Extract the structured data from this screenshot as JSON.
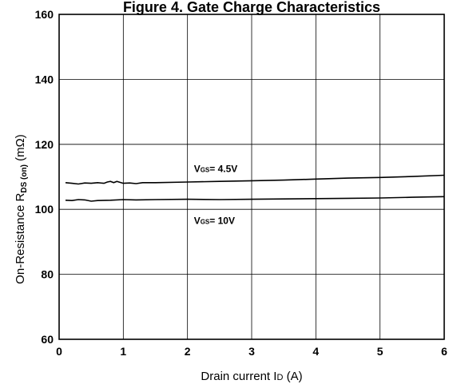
{
  "chart_data": {
    "type": "line",
    "title": "Figure 4. Gate Charge Characteristics",
    "xlabel_main": "Drain current I",
    "xlabel_sub": "D",
    "xlabel_unit": " (A)",
    "ylabel_main": "On-Resistance  R",
    "ylabel_sub": "DS (on)",
    "ylabel_unit": " (mΩ)",
    "xlim": [
      0,
      6
    ],
    "ylim": [
      60,
      160
    ],
    "xticks": [
      0,
      1,
      2,
      3,
      4,
      5,
      6
    ],
    "yticks": [
      60,
      80,
      100,
      120,
      140,
      160
    ],
    "grid": true,
    "series": [
      {
        "label_prefix": "V",
        "label_sub": "GS",
        "label_suffix": "= 4.5V",
        "label_at": [
          2.1,
          111.5
        ],
        "x": [
          0.1,
          0.2,
          0.3,
          0.4,
          0.5,
          0.6,
          0.7,
          0.75,
          0.8,
          0.85,
          0.9,
          1.0,
          1.1,
          1.2,
          1.3,
          1.5,
          2.0,
          2.5,
          3.0,
          3.5,
          4.0,
          4.5,
          5.0,
          5.5,
          6.0
        ],
        "y": [
          108.2,
          108.0,
          107.8,
          108.1,
          108.0,
          108.2,
          108.0,
          108.4,
          108.6,
          108.2,
          108.6,
          108.0,
          108.1,
          107.9,
          108.2,
          108.2,
          108.4,
          108.6,
          108.8,
          109.0,
          109.3,
          109.6,
          109.8,
          110.1,
          110.5
        ]
      },
      {
        "label_prefix": "V",
        "label_sub": "GS",
        "label_suffix": "= 10V",
        "label_at": [
          2.1,
          95.5
        ],
        "x": [
          0.1,
          0.2,
          0.3,
          0.4,
          0.5,
          0.6,
          0.8,
          1.0,
          1.2,
          1.5,
          2.0,
          2.5,
          3.0,
          3.5,
          4.0,
          4.5,
          5.0,
          5.5,
          6.0
        ],
        "y": [
          102.8,
          102.7,
          103.0,
          102.9,
          102.5,
          102.7,
          102.8,
          103.0,
          102.9,
          103.0,
          103.1,
          103.0,
          103.1,
          103.2,
          103.3,
          103.4,
          103.5,
          103.7,
          103.9
        ]
      }
    ]
  }
}
